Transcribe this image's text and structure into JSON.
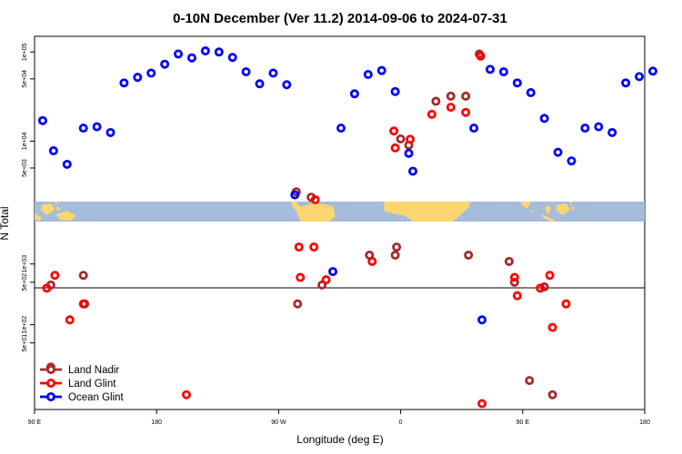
{
  "chart_data": {
    "type": "scatter",
    "title": "0-10N December (Ver 11.2)   2014-09-06 to 2024-07-31",
    "xlabel": "Longitude (deg E)",
    "ylabel": "N Total",
    "x_ticks": [
      {
        "value": 90,
        "label": "90 E"
      },
      {
        "value": 180,
        "label": "180"
      },
      {
        "value": 270,
        "label": "90 W"
      },
      {
        "value": 360,
        "label": "0"
      },
      {
        "value": 450,
        "label": "90 E"
      },
      {
        "value": 540,
        "label": "180"
      }
    ],
    "x_range": [
      90,
      540
    ],
    "upper_panel": {
      "scale": "log10",
      "y_range": [
        2100,
        150000
      ],
      "y_ticks": [
        {
          "value": 5000,
          "label": "5e+03"
        },
        {
          "value": 10000,
          "label": "1e+04"
        },
        {
          "value": 50000,
          "label": "5e+04"
        },
        {
          "value": 100000,
          "label": "1e+05"
        }
      ]
    },
    "lower_panel": {
      "scale": "log10",
      "y_range": [
        4,
        5000
      ],
      "y_ticks": [
        {
          "value": 50,
          "label": "5e+01"
        },
        {
          "value": 100,
          "label": "1e+02"
        },
        {
          "value": 500,
          "label": "5e+02"
        },
        {
          "value": 1000,
          "label": "1e+03"
        }
      ]
    },
    "series": [
      {
        "name": "Land Nadir",
        "color": "#A52A2A",
        "points": [
          [
            102,
            20
          ],
          [
            102,
            450
          ],
          [
            126,
            650
          ],
          [
            127,
            220
          ],
          [
            284,
            220
          ],
          [
            283,
            2700
          ],
          [
            294,
            2350
          ],
          [
            302,
            450
          ],
          [
            357,
            1900
          ],
          [
            356,
            1400
          ],
          [
            337,
            1400
          ],
          [
            360,
            10600
          ],
          [
            366,
            9000
          ],
          [
            386,
            28000
          ],
          [
            397,
            32000
          ],
          [
            408,
            32000
          ],
          [
            418,
            95000
          ],
          [
            410,
            1400
          ],
          [
            440,
            1100
          ],
          [
            444,
            500
          ],
          [
            455,
            12
          ],
          [
            466,
            420
          ],
          [
            472,
            7
          ]
        ]
      },
      {
        "name": "Land Glint",
        "color": "#FF0000",
        "points": [
          [
            99,
            400
          ],
          [
            105,
            650
          ],
          [
            116,
            120
          ],
          [
            126,
            220
          ],
          [
            202,
            7
          ],
          [
            286,
            600
          ],
          [
            285,
            1900
          ],
          [
            296,
            1900
          ],
          [
            297,
            2200
          ],
          [
            305,
            550
          ],
          [
            339,
            1100
          ],
          [
            355,
            13000
          ],
          [
            356,
            8400
          ],
          [
            367,
            10500
          ],
          [
            383,
            20000
          ],
          [
            397,
            24000
          ],
          [
            408,
            21000
          ],
          [
            419,
            90000
          ],
          [
            420,
            5
          ],
          [
            444,
            600
          ],
          [
            446,
            300
          ],
          [
            463,
            400
          ],
          [
            470,
            650
          ],
          [
            472,
            90
          ],
          [
            482,
            220
          ]
        ]
      },
      {
        "name": "Ocean Glint",
        "color": "#0000FF",
        "points": [
          [
            96,
            17000
          ],
          [
            104,
            7800
          ],
          [
            114,
            5500
          ],
          [
            126,
            14000
          ],
          [
            136,
            14500
          ],
          [
            146,
            12500
          ],
          [
            156,
            45000
          ],
          [
            166,
            52000
          ],
          [
            176,
            58000
          ],
          [
            186,
            73000
          ],
          [
            196,
            95000
          ],
          [
            206,
            86000
          ],
          [
            216,
            103000
          ],
          [
            226,
            100000
          ],
          [
            236,
            87000
          ],
          [
            246,
            60000
          ],
          [
            256,
            44000
          ],
          [
            266,
            58000
          ],
          [
            276,
            43000
          ],
          [
            282,
            2500
          ],
          [
            310,
            750
          ],
          [
            316,
            14000
          ],
          [
            326,
            34000
          ],
          [
            336,
            56000
          ],
          [
            346,
            62000
          ],
          [
            356,
            36000
          ],
          [
            366,
            7300
          ],
          [
            369,
            4600
          ],
          [
            414,
            14000
          ],
          [
            420,
            120
          ],
          [
            426,
            64000
          ],
          [
            436,
            60000
          ],
          [
            446,
            45000
          ],
          [
            456,
            35000
          ],
          [
            466,
            18000
          ],
          [
            476,
            7500
          ],
          [
            486,
            6000
          ],
          [
            496,
            14000
          ],
          [
            506,
            14500
          ],
          [
            516,
            12500
          ],
          [
            526,
            45000
          ],
          [
            536,
            53000
          ],
          [
            546,
            61000
          ]
        ]
      }
    ],
    "legend": {
      "position": "bottom-left",
      "entries": [
        "Land Nadir",
        "Land Glint",
        "Ocean Glint"
      ]
    },
    "map_strip": {
      "ocean_color": "#A5BCDB",
      "land_color": "#FDD66F"
    }
  }
}
